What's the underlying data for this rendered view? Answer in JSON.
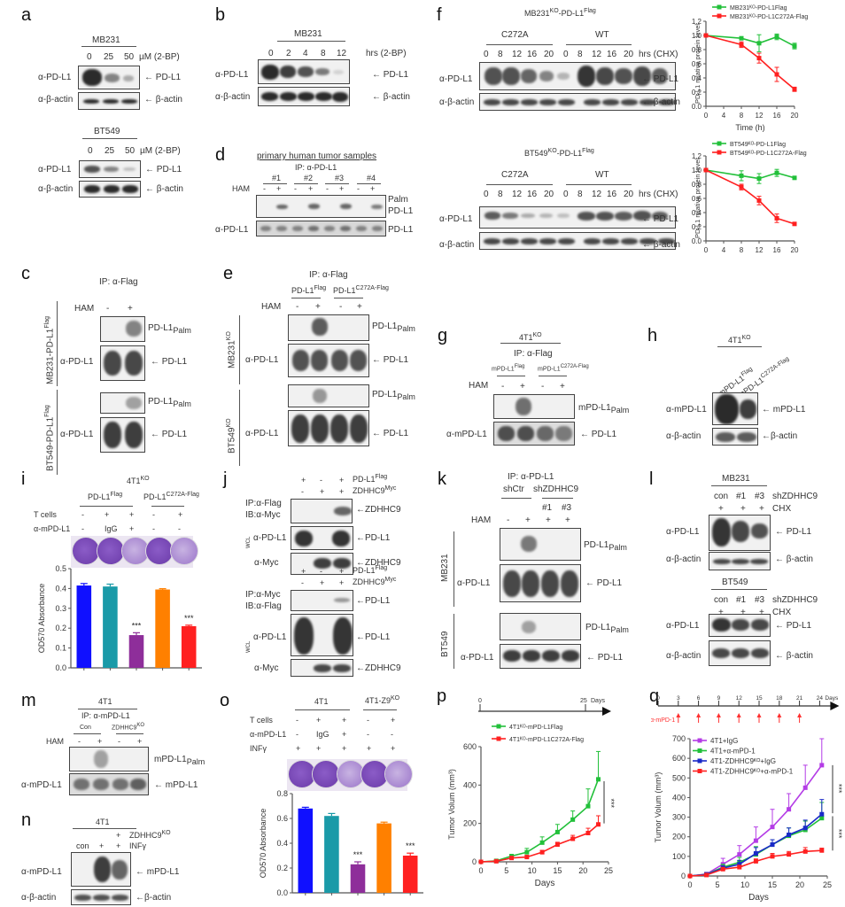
{
  "panels": {
    "a": {
      "letter": "a",
      "blots": [
        {
          "cell": "MB231",
          "doses": [
            "0",
            "25",
            "50"
          ],
          "unit": "µM (2-BP)",
          "rows": [
            {
              "antibody": "α-PD-L1",
              "target": "← PD-L1"
            },
            {
              "antibody": "α-β-actin",
              "target": "← β-actin"
            }
          ]
        },
        {
          "cell": "BT549",
          "doses": [
            "0",
            "25",
            "50"
          ],
          "unit": "µM (2-BP)",
          "rows": [
            {
              "antibody": "α-PD-L1",
              "target": "← PD-L1"
            },
            {
              "antibody": "α-β-actin",
              "target": "← β-actin"
            }
          ]
        }
      ]
    },
    "b": {
      "letter": "b",
      "cell": "MB231",
      "times": [
        "0",
        "2",
        "4",
        "8",
        "12"
      ],
      "unit": "hrs (2-BP)",
      "rows": [
        {
          "antibody": "α-PD-L1",
          "target": "← PD-L1"
        },
        {
          "antibody": "α-β-actin",
          "target": "← β-actin"
        }
      ]
    },
    "c": {
      "letter": "c",
      "ip": "IP: α-Flag",
      "ham_label": "HAM",
      "ham": [
        "-",
        "+"
      ],
      "groups": [
        {
          "cell": "MB231-PD-L1",
          "cell_sup": "Flag",
          "palm": "PD-L1",
          "palm_sub": "Palm",
          "antibody": "α-PD-L1",
          "target": "← PD-L1"
        },
        {
          "cell": "BT549-PD-L1",
          "cell_sup": "Flag",
          "palm": "PD-L1",
          "palm_sub": "Palm",
          "antibody": "α-PD-L1",
          "target": "← PD-L1"
        }
      ]
    },
    "d": {
      "letter": "d",
      "title": "primary human tumor samples",
      "ip": "IP: α-PD-L1",
      "ham_label": "HAM",
      "samples": [
        "#1",
        "#2",
        "#3",
        "#4"
      ],
      "ham": [
        "-",
        "+",
        "-",
        "+",
        "-",
        "+",
        "-",
        "+"
      ],
      "palm_label_1": "Palm",
      "palm_label_2": "PD-L1",
      "antibody": "α-PD-L1",
      "target": "PD-L1"
    },
    "e": {
      "letter": "e",
      "ip": "IP: α-Flag",
      "ham_label": "HAM",
      "ham": [
        "-",
        "+",
        "-",
        "+"
      ],
      "constructs": [
        {
          "name": "PD-L1",
          "sup": "Flag"
        },
        {
          "name": "PD-L1",
          "sup": "C272A-Flag"
        }
      ],
      "groups": [
        {
          "cell": "MB231",
          "cell_sup": "KO",
          "palm": "PD-L1",
          "palm_sub": "Palm",
          "antibody": "α-PD-L1",
          "target": "← PD-L1"
        },
        {
          "cell": "BT549",
          "cell_sup": "KO",
          "palm": "PD-L1",
          "palm_sub": "Palm",
          "antibody": "α-PD-L1",
          "target": "← PD-L1"
        }
      ]
    },
    "f": {
      "letter": "f",
      "blots": [
        {
          "title": "MB231",
          "title_sup1": "KO",
          "title_mid": "-PD-L1",
          "title_sup2": "Flag",
          "groups": [
            "C272A",
            "WT"
          ],
          "times": [
            "0",
            "8",
            "12",
            "16",
            "20"
          ],
          "unit": "hrs (CHX)",
          "rows": [
            {
              "antibody": "α-PD-L1",
              "target": "← PD-L1"
            },
            {
              "antibody": "α-β-actin",
              "target": "← β-actin"
            }
          ]
        },
        {
          "title": "BT549",
          "title_sup1": "KO",
          "title_mid": "-PD-L1",
          "title_sup2": "Flag",
          "groups": [
            "C272A",
            "WT"
          ],
          "times": [
            "0",
            "8",
            "12",
            "16",
            "20"
          ],
          "unit": "hrs (CHX)",
          "rows": [
            {
              "antibody": "α-PD-L1",
              "target": "← PD-L1"
            },
            {
              "antibody": "α-β-actin",
              "target": "← β-actin"
            }
          ]
        }
      ]
    },
    "g": {
      "letter": "g",
      "cell": "4T1",
      "cell_sup": "KO",
      "ip": "IP: α-Flag",
      "ham_label": "HAM",
      "ham": [
        "-",
        "+",
        "-",
        "+"
      ],
      "constructs": [
        {
          "name": "mPD-L1",
          "sup": "Flag"
        },
        {
          "name": "mPD-L1",
          "sup": "C272A-Flag"
        }
      ],
      "palm": "mPD-L1",
      "palm_sub": "Palm",
      "antibody": "α-mPD-L1",
      "target": "← PD-L1"
    },
    "h": {
      "letter": "h",
      "cell": "4T1",
      "cell_sup": "KO",
      "lanes": [
        {
          "name": "mPD-L1",
          "sup": "Flag"
        },
        {
          "name": "mPD-L1",
          "sup": "C272A-Flag"
        }
      ],
      "rows": [
        {
          "antibody": "α-mPD-L1",
          "target": "← mPD-L1"
        },
        {
          "antibody": "α-β-actin",
          "target": "←β-actin"
        }
      ]
    },
    "i": {
      "letter": "i",
      "cell": "4T1",
      "cell_sup": "KO",
      "groups": [
        {
          "name": "PD-L1",
          "sup": "Flag"
        },
        {
          "name": "PD-L1",
          "sup": "C272A-Flag"
        }
      ],
      "conditions": [
        {
          "label": "T cells",
          "values": [
            "-",
            "+",
            "+",
            "-",
            "+"
          ]
        },
        {
          "label": "α-mPD-L1",
          "values": [
            "-",
            "IgG",
            "+",
            "-",
            "-"
          ]
        }
      ]
    },
    "j": {
      "letter": "j",
      "blocks": [
        {
          "plus1": [
            "+",
            "-",
            "+"
          ],
          "label1": "PD-L1",
          "label1_sup": "Flag",
          "plus2": [
            "-",
            "+",
            "+"
          ],
          "label2": "ZDHHC9",
          "label2_sup": "Myc",
          "ip": "IP:α-Flag",
          "ib": "IB:α-Myc",
          "ip_target": "←ZDHHC9",
          "wcl": "WCL",
          "rows": [
            {
              "antibody": "α-PD-L1",
              "target": "←PD-L1"
            },
            {
              "antibody": "α-Myc",
              "target": "←ZDHHC9"
            }
          ]
        },
        {
          "plus1": [
            "+",
            "-",
            "+"
          ],
          "label1": "PD-L1",
          "label1_sup": "Flag",
          "plus2": [
            "-",
            "+",
            "+"
          ],
          "label2": "ZDHHC9",
          "label2_sup": "Myc",
          "ip": "IP:α-Myc",
          "ib": "IB:α-Flag",
          "ip_target": "←PD-L1",
          "wcl": "WCL",
          "rows": [
            {
              "antibody": "α-PD-L1",
              "target": "←PD-L1"
            },
            {
              "antibody": "α-Myc",
              "target": "←ZDHHC9"
            }
          ]
        }
      ]
    },
    "k": {
      "letter": "k",
      "ip": "IP: α-PD-L1",
      "groups": [
        "shCtr",
        "shZDHHC9"
      ],
      "clones": [
        "#1",
        "#3"
      ],
      "ham_label": "HAM",
      "ham": [
        "-",
        "+",
        "+",
        "+"
      ],
      "cells": [
        {
          "cell": "MB231",
          "palm": "PD-L1",
          "palm_sub": "Palm",
          "antibody": "α-PD-L1",
          "target": "← PD-L1"
        },
        {
          "cell": "BT549",
          "palm": "PD-L1",
          "palm_sub": "Palm",
          "antibody": "α-PD-L1",
          "target": "← PD-L1"
        }
      ]
    },
    "l": {
      "letter": "l",
      "blots": [
        {
          "cell": "MB231",
          "lanes": [
            "con",
            "#1",
            "#3"
          ],
          "lane_label": "shZDHHC9",
          "chx": [
            "+",
            "+",
            "+"
          ],
          "chx_label": "CHX",
          "rows": [
            {
              "antibody": "α-PD-L1",
              "target": "← PD-L1"
            },
            {
              "antibody": "α-β-actin",
              "target": "← β-actin"
            }
          ]
        },
        {
          "cell": "BT549",
          "lanes": [
            "con",
            "#1",
            "#3"
          ],
          "lane_label": "shZDHHC9",
          "chx": [
            "+",
            "+",
            "+"
          ],
          "chx_label": "CHX",
          "rows": [
            {
              "antibody": "α-PD-L1",
              "target": "← PD-L1"
            },
            {
              "antibody": "α-β-actin",
              "target": "← β-actin"
            }
          ]
        }
      ]
    },
    "m": {
      "letter": "m",
      "cell": "4T1",
      "ip": "IP: α-mPD-L1",
      "groups": [
        {
          "name": "Con",
          "sup": ""
        },
        {
          "name": "ZDHHC9",
          "sup": "KO"
        }
      ],
      "ham_label": "HAM",
      "ham": [
        "-",
        "+",
        "-",
        "+"
      ],
      "palm": "mPD-L1",
      "palm_sub": "Palm",
      "antibody": "α-mPD-L1",
      "target": "← mPD-L1"
    },
    "n": {
      "letter": "n",
      "cell": "4T1",
      "row1": [
        "",
        "",
        "+"
      ],
      "row1_label": "ZDHHC9",
      "row1_sup": "KO",
      "row2": [
        "con",
        "+",
        "+"
      ],
      "row2_label": "INFγ",
      "rows": [
        {
          "antibody": "α-mPD-L1",
          "target": "← mPD-L1"
        },
        {
          "antibody": "α-β-actin",
          "target": "←β-actin"
        }
      ]
    },
    "o": {
      "letter": "o",
      "groups": [
        {
          "name": "4T1",
          "sup": ""
        },
        {
          "name": "4T1-Z9",
          "sup": "KO"
        }
      ],
      "conditions": [
        {
          "label": "T cells",
          "values": [
            "-",
            "+",
            "+",
            "-",
            "+"
          ]
        },
        {
          "label": "α-mPD-L1",
          "values": [
            "-",
            "IgG",
            "+",
            "-",
            "-"
          ]
        },
        {
          "label": "INFγ",
          "values": [
            "+",
            "+",
            "+",
            "+",
            "+"
          ]
        }
      ]
    },
    "p": {
      "letter": "p",
      "timeline_start": "0",
      "timeline_end": "25",
      "timeline_unit": "Days"
    },
    "q": {
      "letter": "q",
      "timeline_ticks": [
        "0",
        "3",
        "6",
        "9",
        "12",
        "15",
        "18",
        "21",
        "24"
      ],
      "timeline_unit": "Days",
      "treatment": "α-mPD-1",
      "treatment_days": [
        3,
        6,
        9,
        12,
        15,
        18,
        21
      ]
    }
  },
  "colors": {
    "green": "#22c03a",
    "red": "#ff2020",
    "blue": "#1010ff",
    "teal": "#1a9aa8",
    "purple": "#8e2e9a",
    "orange": "#ff8000",
    "violet": "#b43ce6",
    "navy": "#1a2ac8"
  },
  "chart_data": [
    {
      "id": "f-top",
      "type": "line",
      "title": "",
      "xlabel": "Time (h)",
      "ylabel": "PD-L1 relative protein level",
      "x": [
        0,
        8,
        12,
        16,
        20
      ],
      "xlim": [
        0,
        20
      ],
      "ylim": [
        0,
        1.2
      ],
      "xticks": [
        "0",
        "4",
        "8",
        "12",
        "16",
        "20"
      ],
      "yticks": [
        "0.0",
        "0.2",
        "0.4",
        "0.6",
        "0.8",
        "1.0",
        "1.2"
      ],
      "legend": "top-right",
      "series": [
        {
          "name": "MB231KO-PD-L1Flag",
          "color": "#22c03a",
          "values": [
            1.0,
            0.96,
            0.89,
            0.98,
            0.85
          ],
          "errors": [
            0,
            0.02,
            0.12,
            0.04,
            0.04
          ]
        },
        {
          "name": "MB231KO-PD-L1C272A-Flag",
          "color": "#ff2020",
          "values": [
            1.0,
            0.87,
            0.68,
            0.45,
            0.24
          ],
          "errors": [
            0,
            0.04,
            0.07,
            0.1,
            0.03
          ]
        }
      ]
    },
    {
      "id": "f-bottom",
      "type": "line",
      "title": "",
      "xlabel": "Time (h)",
      "ylabel": "PD-L1 relative protein level",
      "x": [
        0,
        8,
        12,
        16,
        20
      ],
      "xlim": [
        0,
        20
      ],
      "ylim": [
        0,
        1.2
      ],
      "xticks": [
        "0",
        "4",
        "8",
        "12",
        "16",
        "20"
      ],
      "yticks": [
        "0.0",
        "0.2",
        "0.4",
        "0.6",
        "0.8",
        "1.0",
        "1.2"
      ],
      "legend": "top-right",
      "series": [
        {
          "name": "BT549KO-PD-L1Flag",
          "color": "#22c03a",
          "values": [
            1.0,
            0.92,
            0.88,
            0.96,
            0.89
          ],
          "errors": [
            0,
            0.07,
            0.07,
            0.05,
            0.02
          ]
        },
        {
          "name": "BT549KO-PD-L1C272A-Flag",
          "color": "#ff2020",
          "values": [
            1.0,
            0.76,
            0.57,
            0.32,
            0.24
          ],
          "errors": [
            0,
            0.04,
            0.06,
            0.06,
            0.02
          ]
        }
      ]
    },
    {
      "id": "i",
      "type": "bar",
      "title": "",
      "xlabel": "",
      "ylabel": "OD570 Absorbance",
      "categories": [
        "1",
        "2",
        "3",
        "4",
        "5"
      ],
      "ylim": [
        0,
        0.5
      ],
      "yticks": [
        "0.0",
        "0.1",
        "0.2",
        "0.3",
        "0.4",
        "0.5"
      ],
      "values": [
        0.415,
        0.41,
        0.165,
        0.395,
        0.21
      ],
      "errors": [
        0.01,
        0.012,
        0.012,
        0.004,
        0.005
      ],
      "colors": [
        "#1010ff",
        "#1a9aa8",
        "#8e2e9a",
        "#ff8000",
        "#ff2020"
      ],
      "annotations": [
        "",
        "",
        "***",
        "",
        "***"
      ]
    },
    {
      "id": "o",
      "type": "bar",
      "title": "",
      "xlabel": "",
      "ylabel": "OD570 Absorbance",
      "categories": [
        "1",
        "2",
        "3",
        "4",
        "5"
      ],
      "ylim": [
        0,
        0.8
      ],
      "yticks": [
        "0.0",
        "0.2",
        "0.4",
        "0.6",
        "0.8"
      ],
      "values": [
        0.68,
        0.62,
        0.23,
        0.56,
        0.3
      ],
      "errors": [
        0.01,
        0.02,
        0.02,
        0.01,
        0.02
      ],
      "colors": [
        "#1010ff",
        "#1a9aa8",
        "#8e2e9a",
        "#ff8000",
        "#ff2020"
      ],
      "annotations": [
        "",
        "",
        "***",
        "",
        "***"
      ]
    },
    {
      "id": "p",
      "type": "line",
      "title": "",
      "xlabel": "Days",
      "ylabel": "Tumor Volum (mm³)",
      "x": [
        0,
        3,
        6,
        9,
        12,
        15,
        18,
        21,
        23
      ],
      "xlim": [
        0,
        25
      ],
      "ylim": [
        0,
        600
      ],
      "xticks": [
        "0",
        "5",
        "10",
        "15",
        "20",
        "25"
      ],
      "yticks": [
        "0",
        "200",
        "400",
        "600"
      ],
      "legend": "top-left",
      "significance": "***",
      "series": [
        {
          "name": "4T1KO-mPD-L1Flag",
          "color": "#22c03a",
          "values": [
            0,
            5,
            30,
            50,
            100,
            155,
            220,
            290,
            430
          ],
          "errors": [
            0,
            3,
            8,
            20,
            30,
            40,
            45,
            90,
            145
          ]
        },
        {
          "name": "4T1KO-mPD-L1C272A-Flag",
          "color": "#ff2020",
          "values": [
            0,
            3,
            20,
            25,
            50,
            90,
            120,
            150,
            195
          ],
          "errors": [
            0,
            2,
            5,
            8,
            10,
            12,
            18,
            25,
            45
          ]
        }
      ]
    },
    {
      "id": "q",
      "type": "line",
      "title": "",
      "xlabel": "Days",
      "ylabel": "Tumor Volum (mm³)",
      "x": [
        0,
        3,
        6,
        9,
        12,
        15,
        18,
        21,
        24
      ],
      "xlim": [
        0,
        25
      ],
      "ylim": [
        0,
        700
      ],
      "xticks": [
        "0",
        "5",
        "10",
        "15",
        "20",
        "25"
      ],
      "yticks": [
        "0",
        "100",
        "200",
        "300",
        "400",
        "500",
        "600",
        "700"
      ],
      "legend": "top-left",
      "significance": [
        "***",
        "***"
      ],
      "series": [
        {
          "name": "4T1+IgG",
          "color": "#b43ce6",
          "values": [
            0,
            10,
            60,
            110,
            180,
            250,
            340,
            450,
            565
          ],
          "errors": [
            0,
            5,
            30,
            45,
            70,
            90,
            80,
            115,
            135
          ]
        },
        {
          "name": "4T1+α-mPD-1",
          "color": "#22c03a",
          "values": [
            0,
            8,
            45,
            70,
            110,
            160,
            205,
            235,
            295
          ],
          "errors": [
            0,
            4,
            15,
            25,
            40,
            25,
            40,
            45,
            80
          ]
        },
        {
          "name": "4T1-ZDHHC9KO+IgG",
          "color": "#1a2ac8",
          "values": [
            0,
            8,
            40,
            60,
            115,
            160,
            210,
            245,
            315
          ],
          "errors": [
            0,
            4,
            12,
            20,
            30,
            25,
            35,
            40,
            75
          ]
        },
        {
          "name": "4T1-ZDHHC9KO+α-mPD-1",
          "color": "#ff2020",
          "values": [
            0,
            5,
            35,
            45,
            75,
            100,
            110,
            125,
            130
          ],
          "errors": [
            0,
            3,
            8,
            10,
            12,
            15,
            15,
            20,
            12
          ]
        }
      ]
    }
  ]
}
